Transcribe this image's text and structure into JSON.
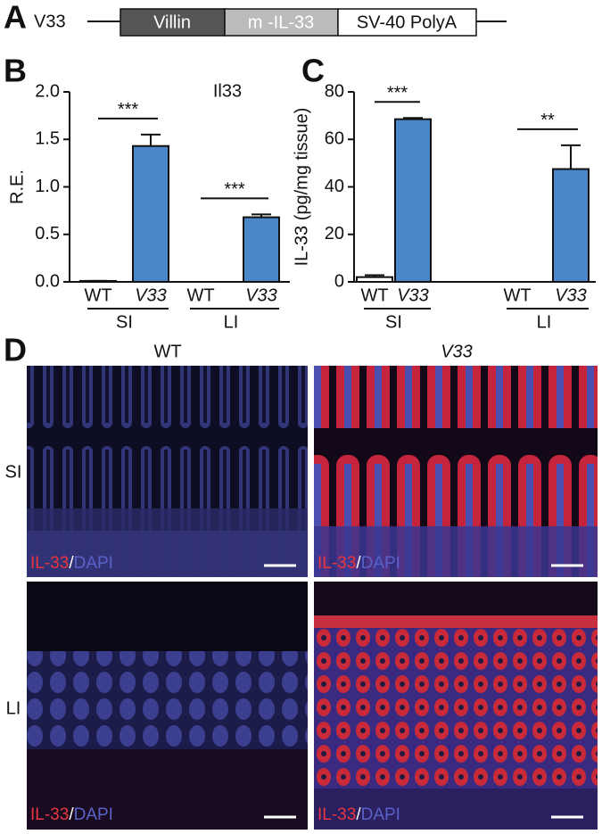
{
  "panel_a": {
    "label": "A",
    "construct": "V33",
    "segments": [
      "Villin",
      "m -IL-33",
      "SV-40 PolyA"
    ]
  },
  "chart_data": [
    {
      "type": "bar",
      "panel": "B",
      "title": "Il33",
      "y_label": "R.E.",
      "categories": [
        "WT",
        "V33",
        "WT",
        "V33"
      ],
      "groups": [
        "SI",
        "LI"
      ],
      "values": [
        0.01,
        1.43,
        0.0,
        0.68
      ],
      "errors": [
        0.0,
        0.12,
        0.0,
        0.03
      ],
      "color": "#4a86c8",
      "ylim": [
        0,
        2
      ],
      "yticks": [
        {
          "value": 0,
          "label": "0.0"
        },
        0.5,
        {
          "value": 1,
          "label": "1.0"
        },
        1.5,
        {
          "value": 2,
          "label": "2.0"
        }
      ],
      "significance": [
        "***",
        "***"
      ]
    },
    {
      "type": "bar",
      "panel": "C",
      "y_label": "IL-33 (pg/mg tissue)",
      "categories": [
        "WT",
        "V33",
        "WT",
        "V33"
      ],
      "groups": [
        "SI",
        "LI"
      ],
      "values": [
        2,
        68.5,
        0,
        47.5
      ],
      "errors": [
        0.8,
        0.5,
        0,
        10
      ],
      "color": "#4a86c8",
      "ylim": [
        0,
        80
      ],
      "yticks": [
        0,
        20,
        40,
        60,
        80
      ],
      "significance": [
        "***",
        "**"
      ]
    }
  ],
  "panel_d": {
    "label": "D",
    "columns": [
      "WT",
      "V33"
    ],
    "rows": [
      "SI",
      "LI"
    ],
    "stain": {
      "marker": "IL-33",
      "separator": "/",
      "nuclear": "DAPI"
    }
  }
}
